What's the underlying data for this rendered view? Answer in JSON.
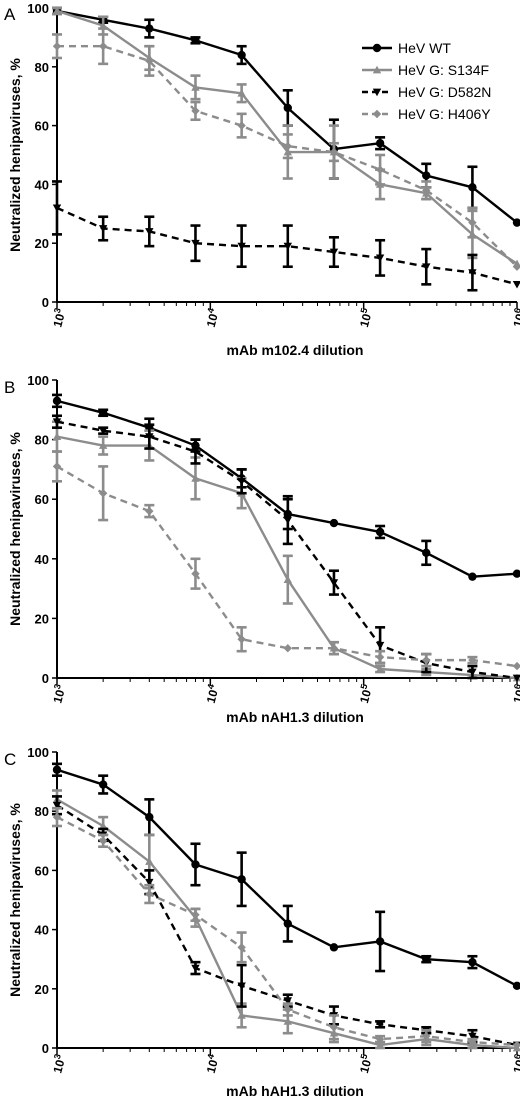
{
  "panels": [
    {
      "letter": "A",
      "chart_data": {
        "type": "line",
        "xlabel": "mAb m102.4 dilution",
        "ylabel": "Neutralized henipaviruses, %",
        "x_scale": "log",
        "xlim": [
          1000,
          1000000
        ],
        "ylim": [
          0,
          100
        ],
        "yticks": [
          0,
          20,
          40,
          60,
          80,
          100
        ],
        "xticks": [
          {
            "base": "10",
            "exp": "3"
          },
          {
            "base": "10",
            "exp": "4"
          },
          {
            "base": "10",
            "exp": "5"
          },
          {
            "base": "10",
            "exp": "6"
          }
        ],
        "legend_position": "top-right",
        "series": [
          {
            "name": "HeV WT",
            "color": "#000000",
            "dash": "solid",
            "marker": "circle",
            "x": [
              1000,
              2000,
              4000,
              8000,
              16000,
              32000,
              64000,
              128000,
              256000,
              512000,
              1000000
            ],
            "y": [
              99,
              96,
              93,
              89,
              84,
              66,
              52,
              54,
              43,
              39,
              27
            ],
            "err": [
              1,
              1,
              3,
              1,
              3,
              6,
              10,
              2,
              4,
              7,
              0
            ]
          },
          {
            "name": "HeV G: S134F",
            "color": "#8c8c8c",
            "dash": "solid",
            "marker": "triangle-up",
            "x": [
              1000,
              2000,
              4000,
              8000,
              16000,
              32000,
              64000,
              128000,
              256000,
              512000,
              1000000
            ],
            "y": [
              99,
              94,
              83,
              73,
              71,
              51,
              51,
              40,
              37,
              23,
              13
            ],
            "err": [
              1,
              3,
              4,
              4,
              3,
              9,
              9,
              5,
              2,
              8,
              0
            ]
          },
          {
            "name": "HeV G: D582N",
            "color": "#000000",
            "dash": "dashed",
            "marker": "triangle-down",
            "x": [
              1000,
              2000,
              4000,
              8000,
              16000,
              32000,
              64000,
              128000,
              256000,
              512000,
              1000000
            ],
            "y": [
              32,
              25,
              24,
              20,
              19,
              19,
              17,
              15,
              12,
              10,
              6
            ],
            "err": [
              9,
              4,
              5,
              6,
              7,
              7,
              5,
              6,
              6,
              6,
              0
            ]
          },
          {
            "name": "HeV G: H406Y",
            "color": "#8c8c8c",
            "dash": "dashed",
            "marker": "diamond",
            "x": [
              1000,
              2000,
              4000,
              8000,
              16000,
              32000,
              64000,
              128000,
              256000,
              512000,
              1000000
            ],
            "y": [
              87,
              87,
              82,
              65,
              60,
              53,
              51,
              45,
              38,
              27,
              12
            ],
            "err": [
              4,
              6,
              5,
              3,
              4,
              4,
              3,
              5,
              3,
              5,
              0
            ]
          }
        ]
      }
    },
    {
      "letter": "B",
      "chart_data": {
        "type": "line",
        "xlabel": "mAb nAH1.3 dilution",
        "ylabel": "Neutralized henipaviruses, %",
        "x_scale": "log",
        "xlim": [
          1000,
          1000000
        ],
        "ylim": [
          0,
          100
        ],
        "yticks": [
          0,
          20,
          40,
          60,
          80,
          100
        ],
        "xticks": [
          {
            "base": "10",
            "exp": "3"
          },
          {
            "base": "10",
            "exp": "4"
          },
          {
            "base": "10",
            "exp": "5"
          },
          {
            "base": "10",
            "exp": "6"
          }
        ],
        "series": [
          {
            "name": "HeV WT",
            "color": "#000000",
            "dash": "solid",
            "marker": "circle",
            "x": [
              1000,
              2000,
              4000,
              8000,
              16000,
              32000,
              64000,
              128000,
              256000,
              512000,
              1000000
            ],
            "y": [
              93,
              89,
              84,
              78,
              67,
              55,
              52,
              49,
              42,
              34,
              35
            ],
            "err": [
              2,
              1,
              3,
              2,
              3,
              5,
              0,
              2,
              4,
              0,
              0
            ]
          },
          {
            "name": "HeV G: S134F",
            "color": "#8c8c8c",
            "dash": "solid",
            "marker": "triangle-up",
            "x": [
              1000,
              2000,
              4000,
              8000,
              16000,
              32000,
              64000,
              128000,
              256000,
              512000,
              1000000
            ],
            "y": [
              81,
              78,
              78,
              67,
              62,
              33,
              10,
              3,
              2,
              1,
              0
            ],
            "err": [
              5,
              3,
              5,
              7,
              5,
              8,
              2,
              1,
              1,
              0,
              0
            ]
          },
          {
            "name": "HeV G: D582N",
            "color": "#000000",
            "dash": "dashed",
            "marker": "triangle-down",
            "x": [
              1000,
              2000,
              4000,
              8000,
              16000,
              32000,
              64000,
              128000,
              256000,
              512000,
              1000000
            ],
            "y": [
              86,
              83,
              81,
              76,
              66,
              53,
              32,
              11,
              5,
              2,
              0
            ],
            "err": [
              2,
              1,
              4,
              4,
              4,
              8,
              4,
              6,
              3,
              2,
              0
            ]
          },
          {
            "name": "HeV G: H406Y",
            "color": "#8c8c8c",
            "dash": "dashed",
            "marker": "diamond",
            "x": [
              1000,
              2000,
              4000,
              8000,
              16000,
              32000,
              64000,
              128000,
              256000,
              512000,
              1000000
            ],
            "y": [
              71,
              62,
              56,
              35,
              13,
              10,
              10,
              7,
              6,
              6,
              4
            ],
            "err": [
              5,
              9,
              2,
              5,
              4,
              0,
              2,
              2,
              2,
              1,
              0
            ]
          }
        ]
      }
    },
    {
      "letter": "C",
      "chart_data": {
        "type": "line",
        "xlabel": "mAb hAH1.3 dilution",
        "ylabel": "Neutralized henipaviruses, %",
        "x_scale": "log",
        "xlim": [
          1000,
          1000000
        ],
        "ylim": [
          0,
          100
        ],
        "yticks": [
          0,
          20,
          40,
          60,
          80,
          100
        ],
        "xticks": [
          {
            "base": "10",
            "exp": "3"
          },
          {
            "base": "10",
            "exp": "4"
          },
          {
            "base": "10",
            "exp": "5"
          },
          {
            "base": "10",
            "exp": "6"
          }
        ],
        "series": [
          {
            "name": "HeV WT",
            "color": "#000000",
            "dash": "solid",
            "marker": "circle",
            "x": [
              1000,
              2000,
              4000,
              8000,
              16000,
              32000,
              64000,
              128000,
              256000,
              512000,
              1000000
            ],
            "y": [
              94,
              89,
              78,
              62,
              57,
              42,
              34,
              36,
              30,
              29,
              21
            ],
            "err": [
              2,
              3,
              6,
              7,
              9,
              6,
              0,
              10,
              1,
              2,
              0
            ]
          },
          {
            "name": "HeV G: S134F",
            "color": "#8c8c8c",
            "dash": "solid",
            "marker": "triangle-up",
            "x": [
              1000,
              2000,
              4000,
              8000,
              16000,
              32000,
              64000,
              128000,
              256000,
              512000,
              1000000
            ],
            "y": [
              84,
              75,
              63,
              44,
              11,
              9,
              5,
              1,
              3,
              1,
              0
            ],
            "err": [
              3,
              3,
              9,
              3,
              4,
              4,
              3,
              1,
              2,
              1,
              0
            ]
          },
          {
            "name": "HeV G: D582N",
            "color": "#000000",
            "dash": "dashed",
            "marker": "triangle-down",
            "x": [
              1000,
              2000,
              4000,
              8000,
              16000,
              32000,
              64000,
              128000,
              256000,
              512000,
              1000000
            ],
            "y": [
              82,
              72,
              56,
              27,
              21,
              16,
              11,
              8,
              6,
              4,
              1
            ],
            "err": [
              3,
              2,
              4,
              2,
              7,
              2,
              3,
              1,
              1,
              2,
              0
            ]
          },
          {
            "name": "HeV G: H406Y",
            "color": "#8c8c8c",
            "dash": "dashed",
            "marker": "diamond",
            "x": [
              1000,
              2000,
              4000,
              8000,
              16000,
              32000,
              64000,
              128000,
              256000,
              512000,
              1000000
            ],
            "y": [
              78,
              70,
              52,
              45,
              34,
              13,
              7,
              3,
              4,
              2,
              1
            ],
            "err": [
              3,
              2,
              3,
              2,
              5,
              2,
              4,
              1,
              2,
              1,
              0
            ]
          }
        ]
      }
    }
  ]
}
